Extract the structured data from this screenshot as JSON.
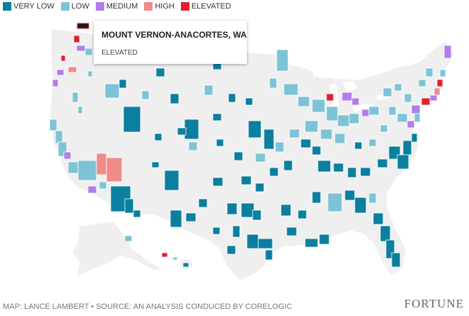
{
  "legend": {
    "items": [
      {
        "label": "VERY LOW",
        "color": "#0b7f9f"
      },
      {
        "label": "LOW",
        "color": "#7dc3d6"
      },
      {
        "label": "MEDIUM",
        "color": "#b07ee8"
      },
      {
        "label": "HIGH",
        "color": "#f08b8b"
      },
      {
        "label": "ELEVATED",
        "color": "#e2202b"
      }
    ]
  },
  "tooltip": {
    "title": "MOUNT VERNON-ANACORTES, WA",
    "level": "ELEVATED"
  },
  "footer": {
    "credit": "MAP: LANCE LAMBERT • SOURCE: AN ANALYSIS CONDUCED BY CORELOGIC",
    "brand": "FORTUNE"
  },
  "map": {
    "land_color": "#efefef",
    "border_color": "#ffffff",
    "no_data_color": "#d9d9d9"
  }
}
